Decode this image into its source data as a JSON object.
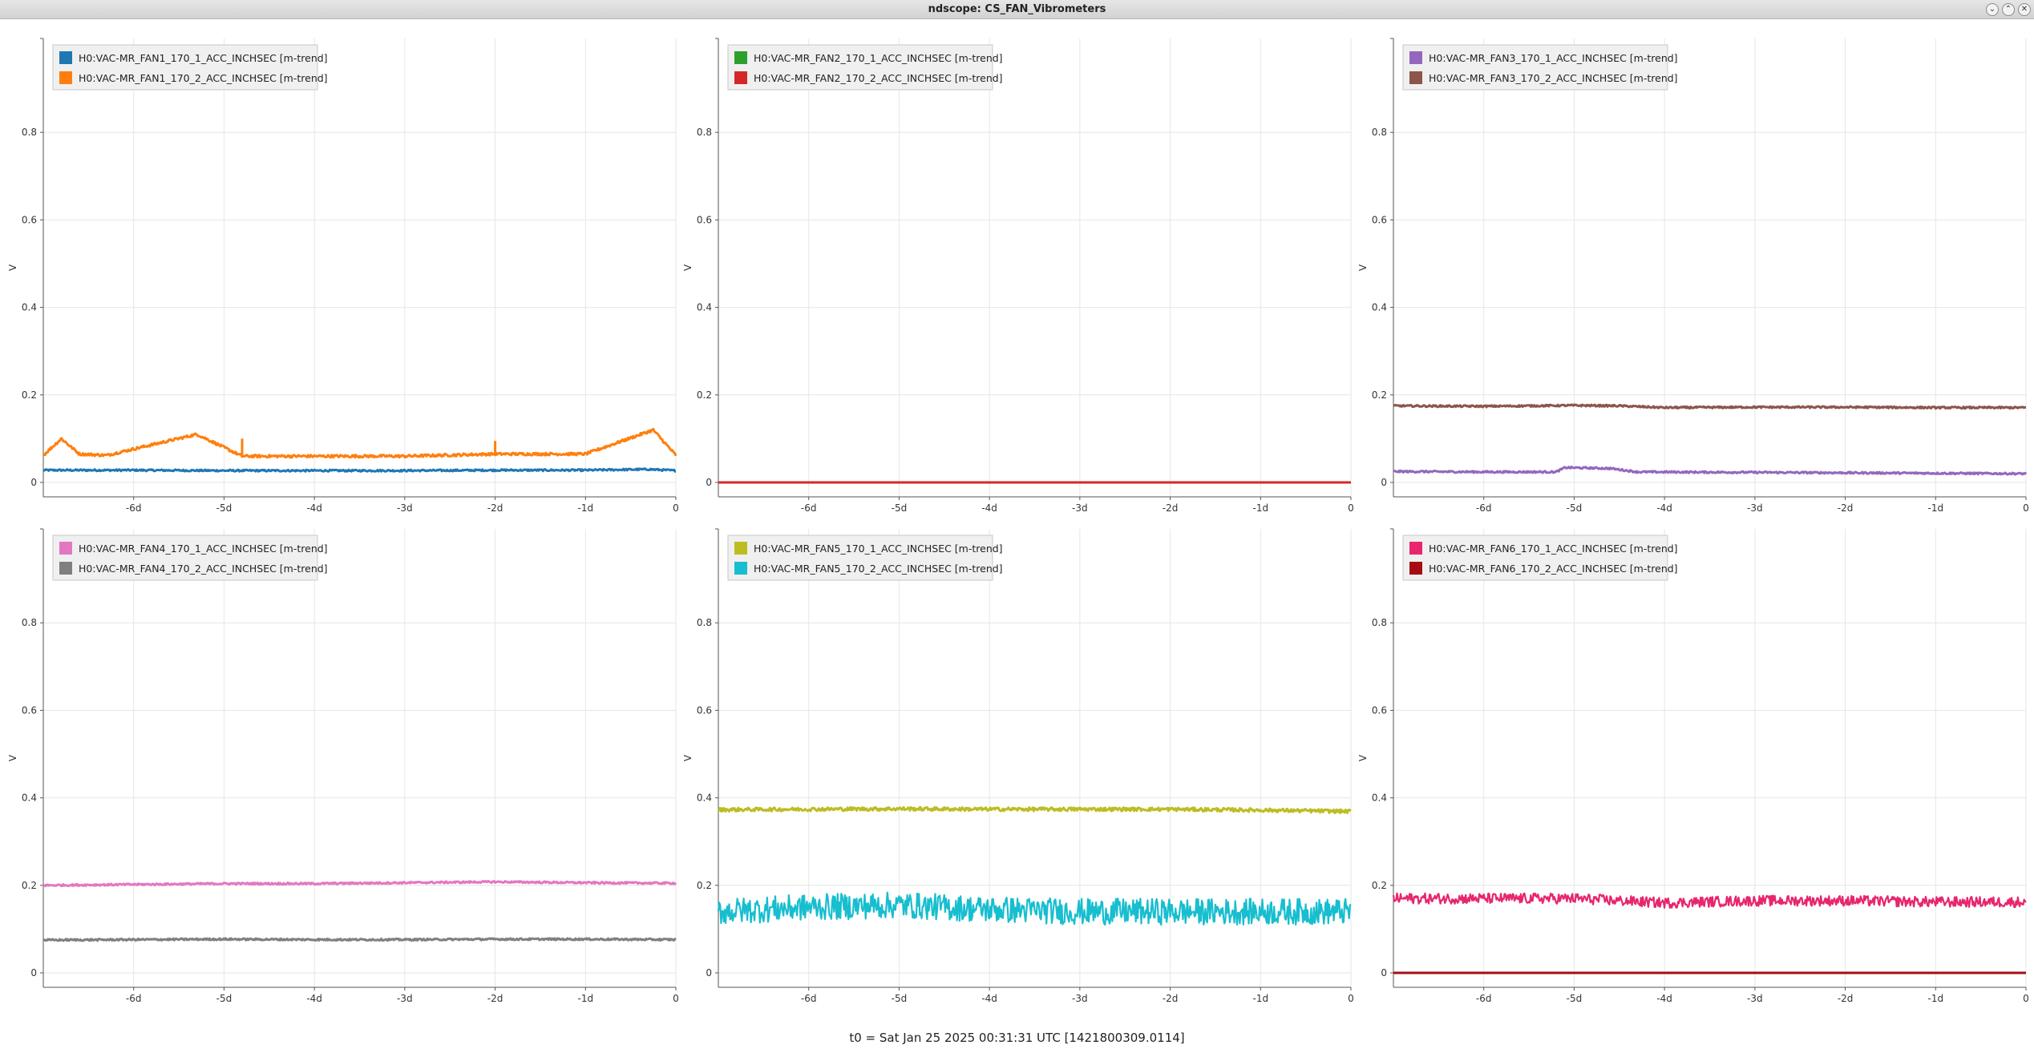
{
  "window": {
    "title": "ndscope: CS_FAN_Vibrometers",
    "buttons": [
      {
        "name": "minimize-button",
        "icon": "chevron-down-icon",
        "glyph": "⌄"
      },
      {
        "name": "maximize-button",
        "icon": "chevron-up-icon",
        "glyph": "⌃"
      },
      {
        "name": "close-button",
        "icon": "close-icon",
        "glyph": "✕"
      }
    ]
  },
  "footer": {
    "t0_label": "t0 = Sat Jan 25 2025 00:31:31 UTC [1421800309.0114]"
  },
  "chart_data": [
    {
      "type": "line",
      "ylabel": "V",
      "xlim": [
        -7,
        0
      ],
      "ylim": [
        0,
        1
      ],
      "yticks": [
        0,
        0.2,
        0.4,
        0.6,
        0.8
      ],
      "ytick_labels": [
        "0",
        "0.2",
        "0.4",
        "0.6",
        "0.8"
      ],
      "xticks": [
        -6,
        -5,
        -4,
        -3,
        -2,
        -1,
        0
      ],
      "xtick_labels": [
        "-6d",
        "-5d",
        "-4d",
        "-3d",
        "-2d",
        "-1d",
        "0"
      ],
      "grid": true,
      "legend_position": "top-left",
      "series": [
        {
          "name": "H0:VAC-MR_FAN1_170_1_ACC_INCHSEC [m-trend]",
          "color": "#1f77b4",
          "x": [
            -7,
            -6,
            -5,
            -4,
            -3,
            -2,
            -1,
            -0.3,
            0
          ],
          "values": [
            0.028,
            0.028,
            0.027,
            0.027,
            0.027,
            0.028,
            0.028,
            0.03,
            0.027
          ]
        },
        {
          "name": "H0:VAC-MR_FAN1_170_2_ACC_INCHSEC [m-trend]",
          "color": "#ff7f0e",
          "x": [
            -7,
            -6.8,
            -6.6,
            -6.3,
            -5.3,
            -4.8,
            -3,
            -2,
            -1,
            -0.25,
            0
          ],
          "values": [
            0.062,
            0.1,
            0.065,
            0.062,
            0.11,
            0.06,
            0.06,
            0.065,
            0.065,
            0.12,
            0.062
          ]
        }
      ]
    },
    {
      "type": "line",
      "ylabel": "V",
      "xlim": [
        -7,
        0
      ],
      "ylim": [
        0,
        1
      ],
      "yticks": [
        0,
        0.2,
        0.4,
        0.6,
        0.8
      ],
      "ytick_labels": [
        "0",
        "0.2",
        "0.4",
        "0.6",
        "0.8"
      ],
      "xticks": [
        -6,
        -5,
        -4,
        -3,
        -2,
        -1,
        0
      ],
      "xtick_labels": [
        "-6d",
        "-5d",
        "-4d",
        "-3d",
        "-2d",
        "-1d",
        "0"
      ],
      "grid": true,
      "legend_position": "top-left",
      "series": [
        {
          "name": "H0:VAC-MR_FAN2_170_1_ACC_INCHSEC [m-trend]",
          "color": "#2ca02c",
          "x": [
            -7,
            0
          ],
          "values": [
            0,
            0
          ]
        },
        {
          "name": "H0:VAC-MR_FAN2_170_2_ACC_INCHSEC [m-trend]",
          "color": "#d62728",
          "x": [
            -7,
            0
          ],
          "values": [
            0,
            0
          ]
        }
      ]
    },
    {
      "type": "line",
      "ylabel": "V",
      "xlim": [
        -7,
        0
      ],
      "ylim": [
        0,
        1
      ],
      "yticks": [
        0,
        0.2,
        0.4,
        0.6,
        0.8
      ],
      "ytick_labels": [
        "0",
        "0.2",
        "0.4",
        "0.6",
        "0.8"
      ],
      "xticks": [
        -6,
        -5,
        -4,
        -3,
        -2,
        -1,
        0
      ],
      "xtick_labels": [
        "-6d",
        "-5d",
        "-4d",
        "-3d",
        "-2d",
        "-1d",
        "0"
      ],
      "grid": true,
      "legend_position": "top-left",
      "series": [
        {
          "name": "H0:VAC-MR_FAN3_170_1_ACC_INCHSEC [m-trend]",
          "color": "#9467bd",
          "x": [
            -7,
            -6,
            -5.2,
            -5.1,
            -4.6,
            -4.3,
            -3,
            -2,
            -1,
            0
          ],
          "values": [
            0.025,
            0.024,
            0.024,
            0.034,
            0.032,
            0.024,
            0.023,
            0.022,
            0.021,
            0.02
          ]
        },
        {
          "name": "H0:VAC-MR_FAN3_170_2_ACC_INCHSEC [m-trend]",
          "color": "#8c564b",
          "x": [
            -7,
            -6,
            -5,
            -4.5,
            -4,
            -3,
            -2,
            -1,
            0
          ],
          "values": [
            0.175,
            0.174,
            0.176,
            0.175,
            0.171,
            0.172,
            0.172,
            0.171,
            0.171
          ]
        }
      ]
    },
    {
      "type": "line",
      "ylabel": "V",
      "xlim": [
        -7,
        0
      ],
      "ylim": [
        0,
        1
      ],
      "yticks": [
        0,
        0.2,
        0.4,
        0.6,
        0.8
      ],
      "ytick_labels": [
        "0",
        "0.2",
        "0.4",
        "0.6",
        "0.8"
      ],
      "xticks": [
        -6,
        -5,
        -4,
        -3,
        -2,
        -1,
        0
      ],
      "xtick_labels": [
        "-6d",
        "-5d",
        "-4d",
        "-3d",
        "-2d",
        "-1d",
        "0"
      ],
      "grid": true,
      "legend_position": "top-left",
      "series": [
        {
          "name": "H0:VAC-MR_FAN4_170_1_ACC_INCHSEC [m-trend]",
          "color": "#e377c2",
          "x": [
            -7,
            -6,
            -5,
            -4,
            -3,
            -2,
            -1,
            0
          ],
          "values": [
            0.2,
            0.202,
            0.204,
            0.204,
            0.206,
            0.208,
            0.206,
            0.205
          ]
        },
        {
          "name": "H0:VAC-MR_FAN4_170_2_ACC_INCHSEC [m-trend]",
          "color": "#7f7f7f",
          "x": [
            -7,
            -6,
            -5,
            -4,
            -3,
            -2,
            -1,
            0
          ],
          "values": [
            0.075,
            0.076,
            0.077,
            0.076,
            0.076,
            0.077,
            0.077,
            0.076
          ]
        }
      ]
    },
    {
      "type": "line",
      "ylabel": "V",
      "xlim": [
        -7,
        0
      ],
      "ylim": [
        0,
        1
      ],
      "yticks": [
        0,
        0.2,
        0.4,
        0.6,
        0.8
      ],
      "ytick_labels": [
        "0",
        "0.2",
        "0.4",
        "0.6",
        "0.8"
      ],
      "xticks": [
        -6,
        -5,
        -4,
        -3,
        -2,
        -1,
        0
      ],
      "xtick_labels": [
        "-6d",
        "-5d",
        "-4d",
        "-3d",
        "-2d",
        "-1d",
        "0"
      ],
      "grid": true,
      "legend_position": "top-left",
      "series": [
        {
          "name": "H0:VAC-MR_FAN5_170_1_ACC_INCHSEC [m-trend]",
          "color": "#bcbd22",
          "x": [
            -7,
            -6,
            -5,
            -4,
            -3,
            -2,
            -1,
            0
          ],
          "values": [
            0.373,
            0.374,
            0.375,
            0.374,
            0.374,
            0.374,
            0.372,
            0.369
          ]
        },
        {
          "name": "H0:VAC-MR_FAN5_170_2_ACC_INCHSEC [m-trend]",
          "color": "#17becf",
          "x": [
            -7,
            -6,
            -5,
            -4,
            -3,
            -2,
            -1,
            0
          ],
          "values": [
            0.14,
            0.15,
            0.155,
            0.145,
            0.14,
            0.14,
            0.14,
            0.14
          ]
        }
      ]
    },
    {
      "type": "line",
      "ylabel": "V",
      "xlim": [
        -7,
        0
      ],
      "ylim": [
        0,
        1
      ],
      "yticks": [
        0,
        0.2,
        0.4,
        0.6,
        0.8
      ],
      "ytick_labels": [
        "0",
        "0.2",
        "0.4",
        "0.6",
        "0.8"
      ],
      "xticks": [
        -6,
        -5,
        -4,
        -3,
        -2,
        -1,
        0
      ],
      "xtick_labels": [
        "-6d",
        "-5d",
        "-4d",
        "-3d",
        "-2d",
        "-1d",
        "0"
      ],
      "grid": true,
      "legend_position": "top-left",
      "series": [
        {
          "name": "H0:VAC-MR_FAN6_170_1_ACC_INCHSEC [m-trend]",
          "color": "#e7266e",
          "x": [
            -7,
            -6,
            -5,
            -4,
            -3,
            -2,
            -1,
            0
          ],
          "values": [
            0.17,
            0.17,
            0.17,
            0.16,
            0.165,
            0.165,
            0.162,
            0.162
          ]
        },
        {
          "name": "H0:VAC-MR_FAN6_170_2_ACC_INCHSEC [m-trend]",
          "color": "#a40d12",
          "x": [
            -7,
            0
          ],
          "values": [
            0,
            0
          ]
        }
      ]
    }
  ]
}
